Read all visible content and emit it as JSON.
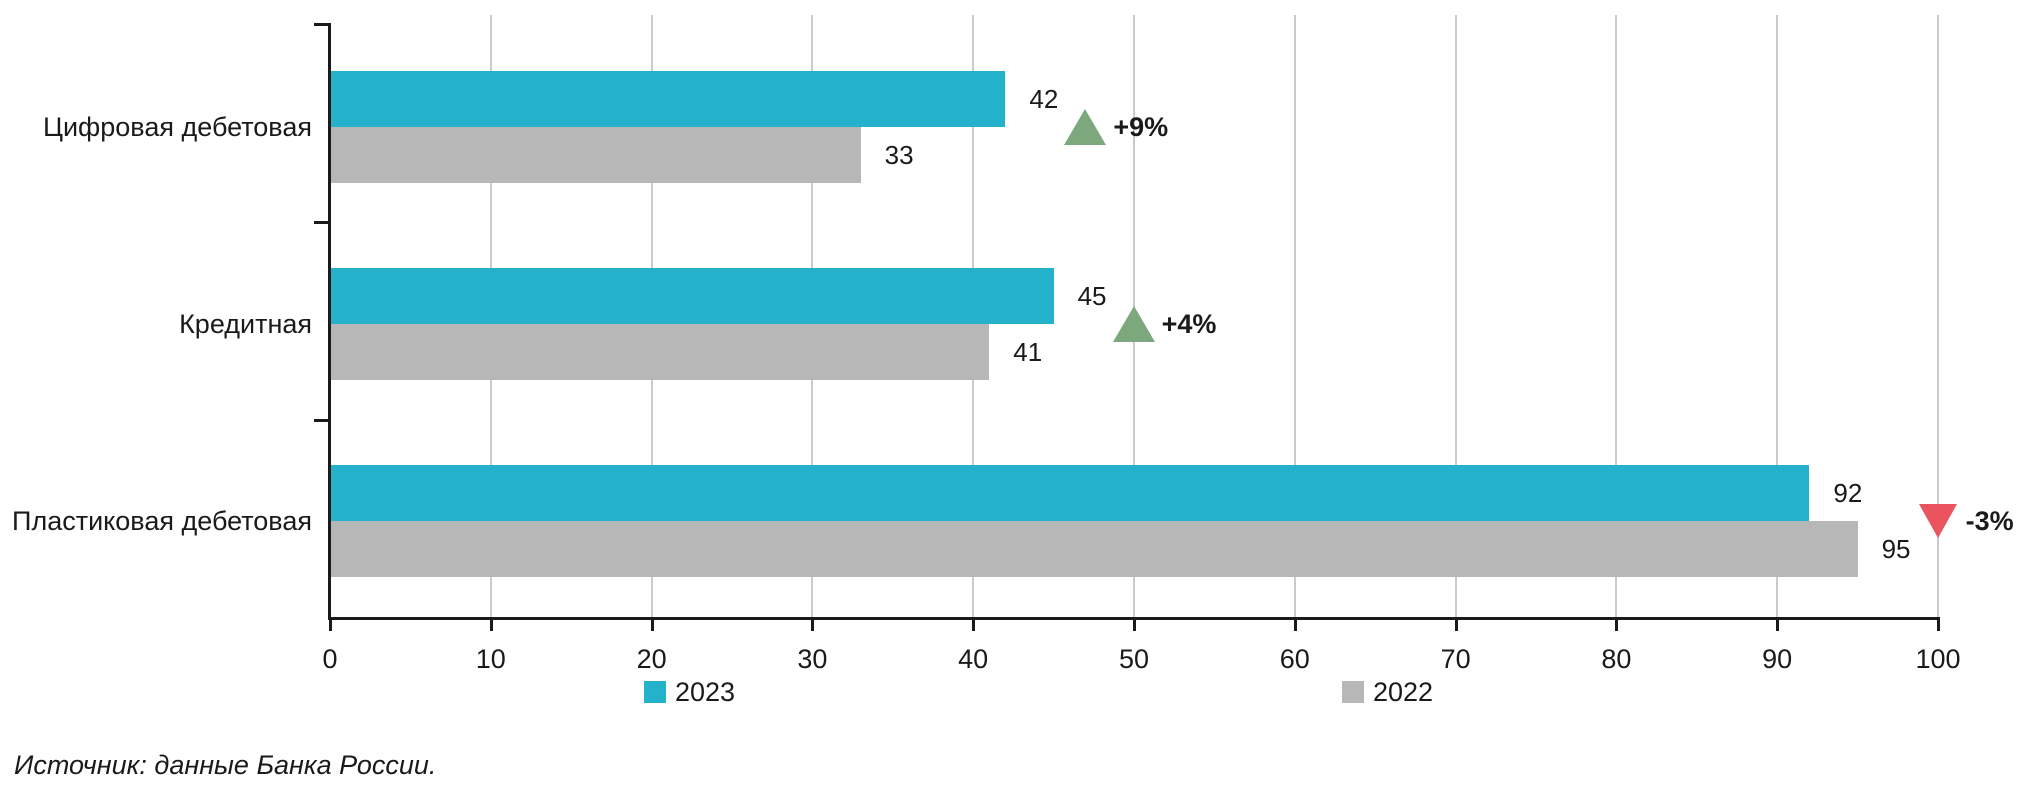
{
  "chart_data": {
    "type": "bar",
    "orientation": "horizontal",
    "title": "",
    "xlabel": "",
    "ylabel": "",
    "categories": [
      "Цифровая дебетовая",
      "Кредитная",
      "Пластиковая дебетовая"
    ],
    "series": [
      {
        "name": "2023",
        "color": "#24b1cb",
        "values": [
          42,
          45,
          92
        ]
      },
      {
        "name": "2022",
        "color": "#b7b7b7",
        "values": [
          33,
          41,
          95
        ]
      }
    ],
    "changes": [
      {
        "label": "+9%",
        "direction": "up",
        "color": "#7da87d"
      },
      {
        "label": "+4%",
        "direction": "up",
        "color": "#7da87d"
      },
      {
        "label": "-3%",
        "direction": "down",
        "color": "#e9545e"
      }
    ],
    "xlim": [
      0,
      100
    ],
    "x_ticks": [
      0,
      10,
      20,
      30,
      40,
      50,
      60,
      70,
      80,
      90,
      100
    ],
    "grid": true,
    "value_labels": true,
    "legend_position": "bottom"
  },
  "colors": {
    "grid": "#cbcbcb",
    "axis": "#1a1a1a",
    "text": "#1a1a1a"
  },
  "source_note": "Источник: данные Банка России."
}
